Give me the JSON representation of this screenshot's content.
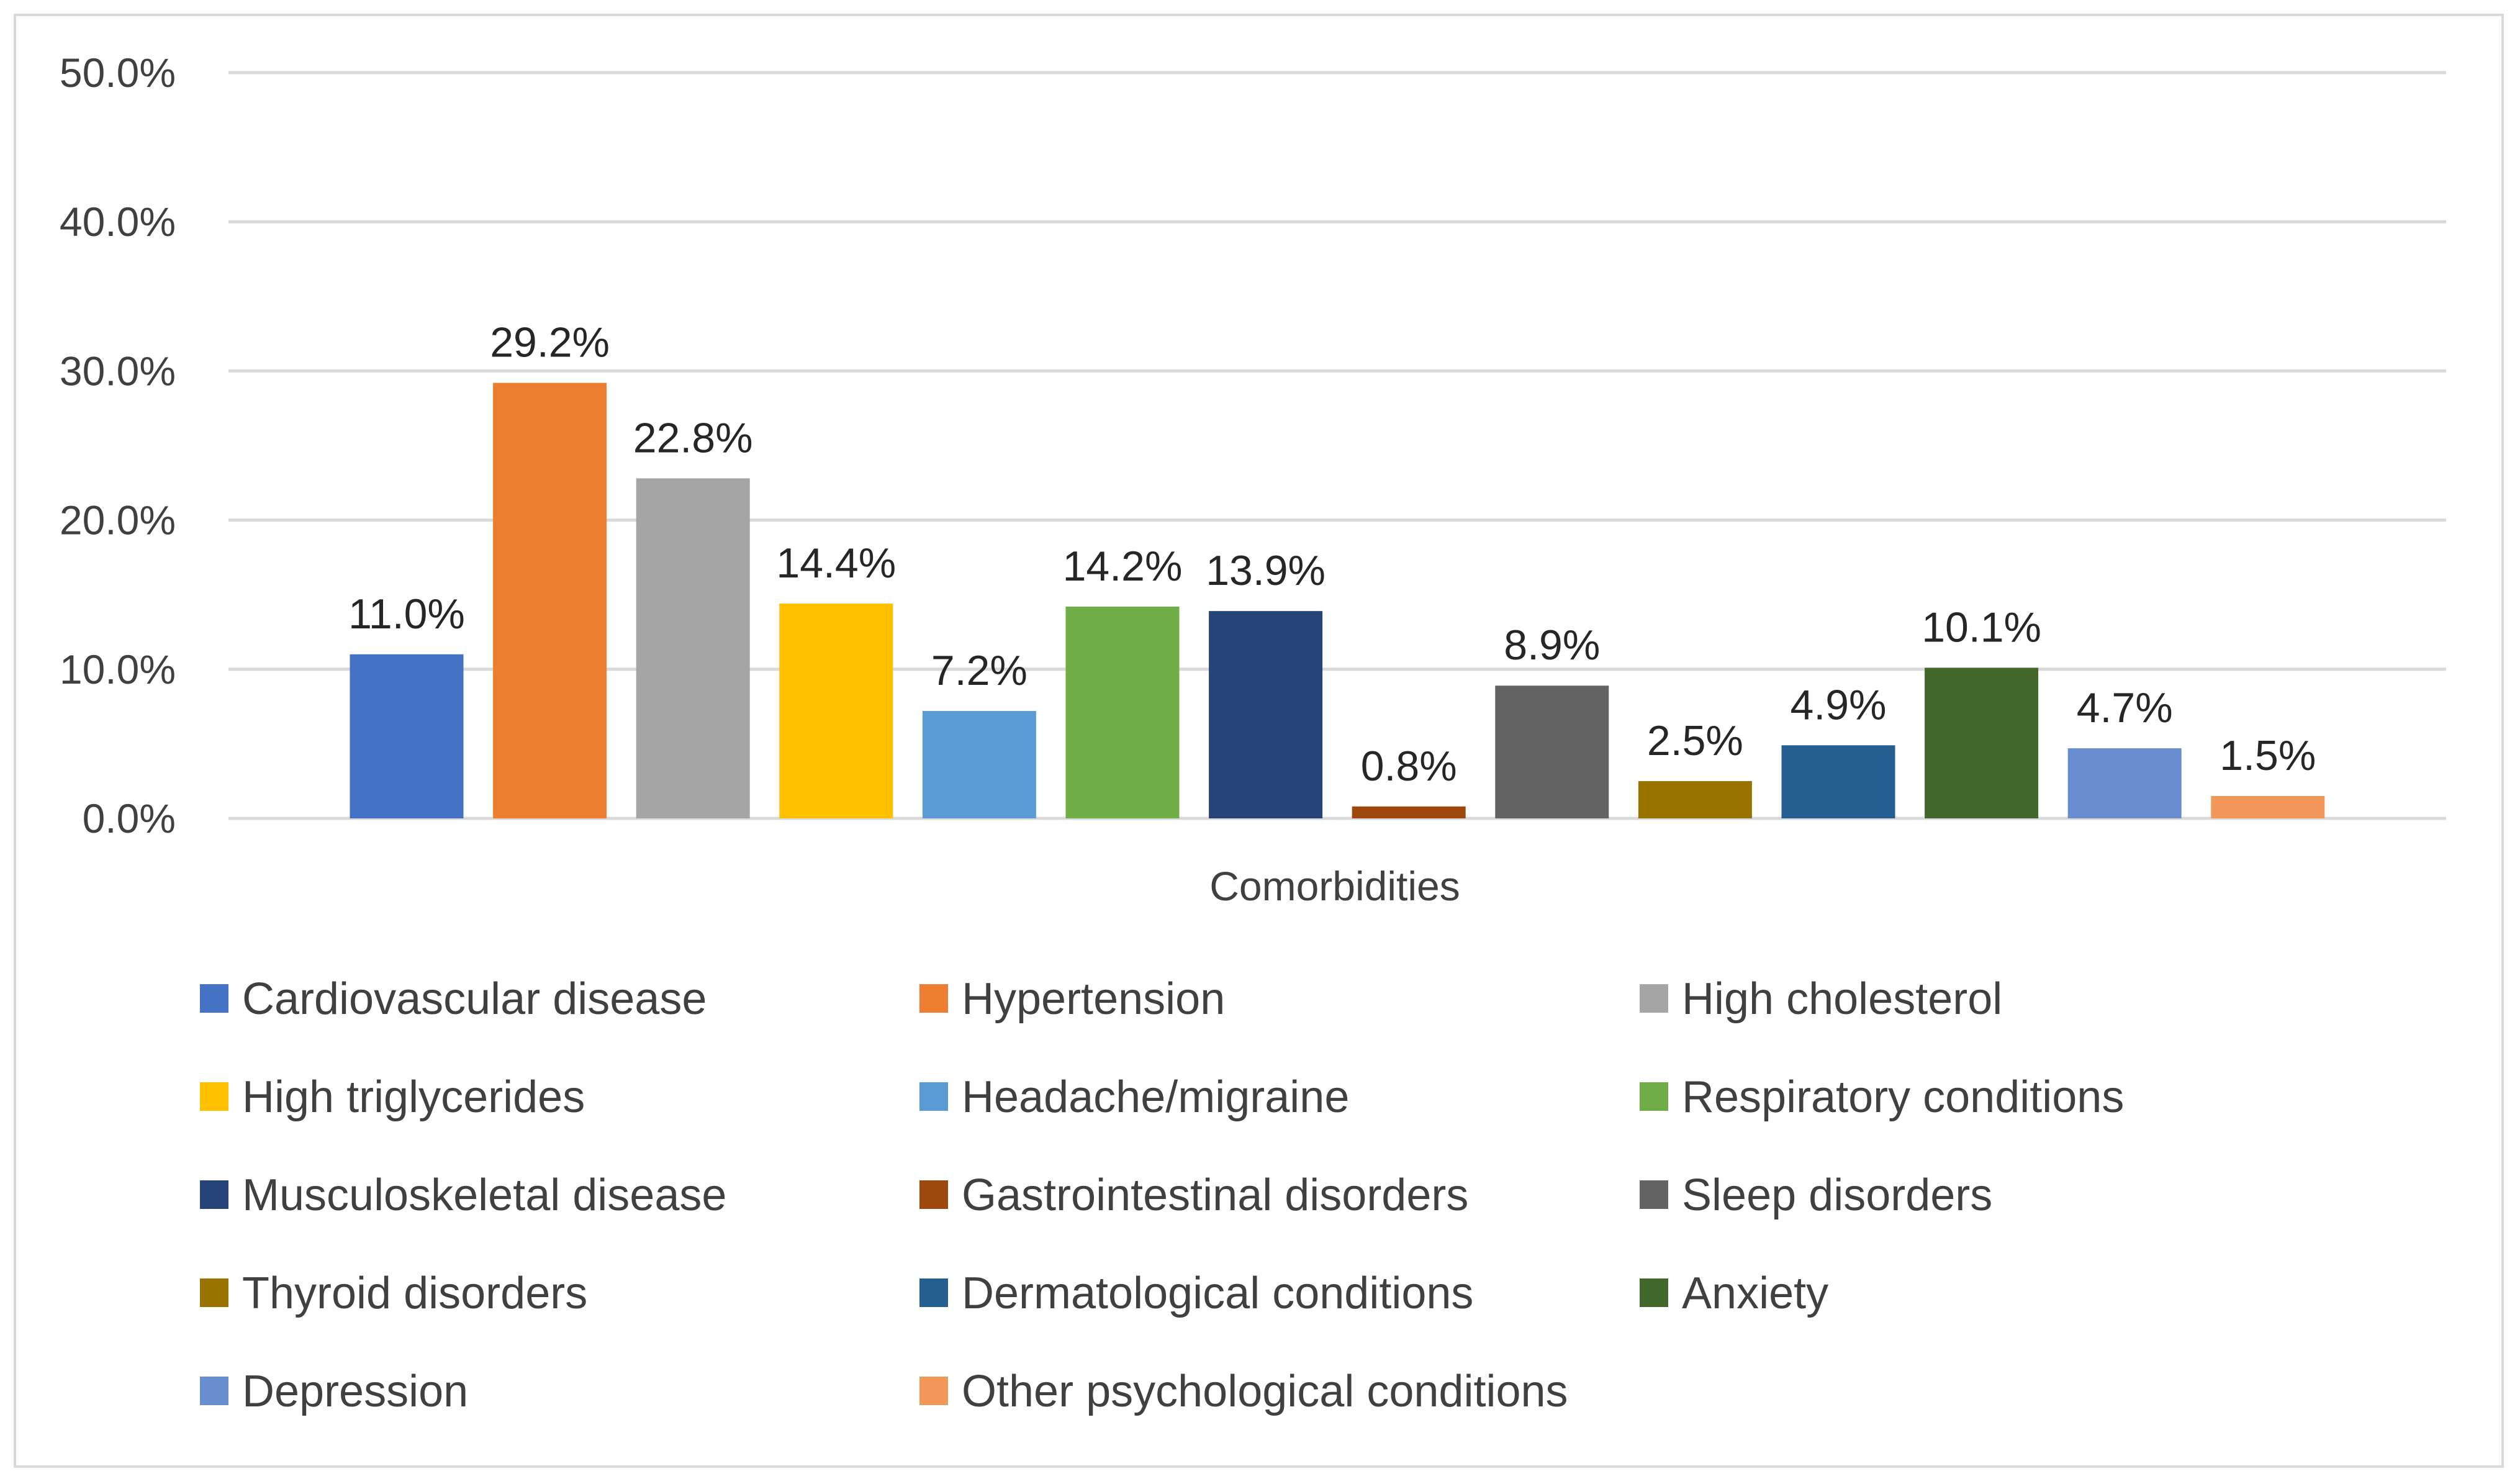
{
  "chart_data": {
    "type": "bar",
    "title": "",
    "xlabel": "Comorbidities",
    "ylabel": "",
    "ylim": [
      0,
      50
    ],
    "yticks": [
      "0.0%",
      "10.0%",
      "20.0%",
      "30.0%",
      "40.0%",
      "50.0%"
    ],
    "grid": true,
    "legend_position": "bottom",
    "series": [
      {
        "name": "Cardiovascular disease",
        "value": 11.0,
        "label": "11.0%",
        "color": "#4472C4"
      },
      {
        "name": "Hypertension",
        "value": 29.2,
        "label": "29.2%",
        "color": "#ED7D31"
      },
      {
        "name": "High cholesterol",
        "value": 22.8,
        "label": "22.8%",
        "color": "#A5A5A5"
      },
      {
        "name": "High triglycerides",
        "value": 14.4,
        "label": "14.4%",
        "color": "#FFC000"
      },
      {
        "name": "Headache/migraine",
        "value": 7.2,
        "label": "7.2%",
        "color": "#5B9BD5"
      },
      {
        "name": "Respiratory conditions",
        "value": 14.2,
        "label": "14.2%",
        "color": "#70AD47"
      },
      {
        "name": "Musculoskeletal disease",
        "value": 13.9,
        "label": "13.9%",
        "color": "#264478"
      },
      {
        "name": "Gastrointestinal disorders",
        "value": 0.8,
        "label": "0.8%",
        "color": "#9E480E"
      },
      {
        "name": "Sleep disorders",
        "value": 8.9,
        "label": "8.9%",
        "color": "#636363"
      },
      {
        "name": "Thyroid disorders",
        "value": 2.5,
        "label": "2.5%",
        "color": "#997300"
      },
      {
        "name": "Dermatological conditions",
        "value": 4.9,
        "label": "4.9%",
        "color": "#255E91"
      },
      {
        "name": "Anxiety",
        "value": 10.1,
        "label": "10.1%",
        "color": "#43682B"
      },
      {
        "name": "Depression",
        "value": 4.7,
        "label": "4.7%",
        "color": "#698ED0"
      },
      {
        "name": "Other psychological conditions",
        "value": 1.5,
        "label": "1.5%",
        "color": "#F1975A"
      }
    ]
  }
}
